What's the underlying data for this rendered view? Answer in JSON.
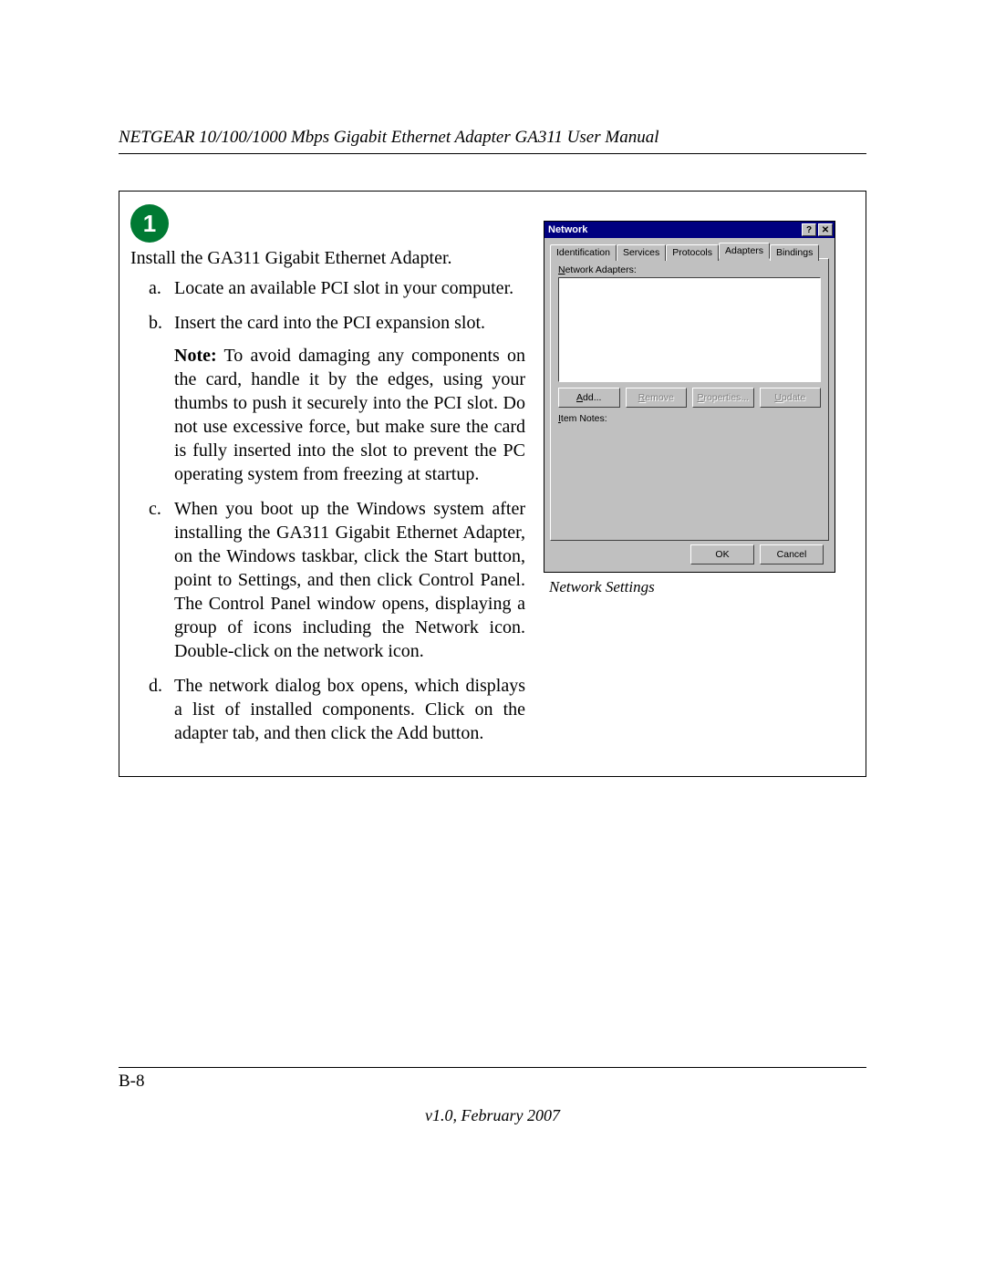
{
  "doc": {
    "header_title": "NETGEAR 10/100/1000 Mbps Gigabit Ethernet Adapter GA311 User Manual",
    "page_number": "B-8",
    "version_line": "v1.0, February 2007"
  },
  "step": {
    "number": "1",
    "badge_bg": "#007a33",
    "badge_fg": "#ffffff",
    "intro": "Install the GA311 Gigabit Ethernet Adapter.",
    "items": [
      {
        "marker": "a.",
        "text": "Locate an available PCI slot in your computer."
      },
      {
        "marker": "b.",
        "text": "Insert the card into the PCI expansion slot.",
        "note_label": "Note:",
        "note_text": " To avoid damaging any components on the card, handle it by the edges, using your thumbs to push it securely into the PCI slot. Do not use excessive force, but make sure the card is fully inserted into the slot to prevent the PC operating system from freezing at startup."
      },
      {
        "marker": "c.",
        "text": "When you boot up the Windows system after installing the GA311 Gigabit Ethernet Adapter, on the Windows taskbar, click the Start button, point to Settings, and then click Control Panel. The Control Panel window opens, displaying a group of icons including the Network icon. Double-click on the network icon."
      },
      {
        "marker": "d.",
        "text": "The network dialog box opens, which displays a list of installed components. Click on the adapter tab, and then click the Add button."
      }
    ]
  },
  "dialog": {
    "caption": "Network Settings",
    "colors": {
      "face": "#c0c0c0",
      "titlebar": "#000080",
      "title_text": "#ffffff",
      "shadow": "#404040",
      "highlight": "#ffffff",
      "disabled_text": "#808080",
      "window_bg": "#ffffff"
    },
    "title": "Network",
    "help_glyph": "?",
    "close_glyph": "✕",
    "tabs": [
      {
        "label": "Identification",
        "active": false
      },
      {
        "label": "Services",
        "active": false
      },
      {
        "label": "Protocols",
        "active": false
      },
      {
        "label": "Adapters",
        "active": true
      },
      {
        "label": "Bindings",
        "active": false
      }
    ],
    "list_label_ul": "N",
    "list_label_rest": "etwork Adapters:",
    "buttons": [
      {
        "ul": "A",
        "rest": "dd...",
        "disabled": false
      },
      {
        "ul": "R",
        "rest": "emove",
        "disabled": true
      },
      {
        "ul": "P",
        "rest": "roperties...",
        "disabled": true
      },
      {
        "ul": "U",
        "rest": "pdate",
        "disabled": true
      }
    ],
    "notes_label_ul": "I",
    "notes_label_rest": "tem Notes:",
    "footer": {
      "ok": "OK",
      "cancel": "Cancel"
    }
  }
}
